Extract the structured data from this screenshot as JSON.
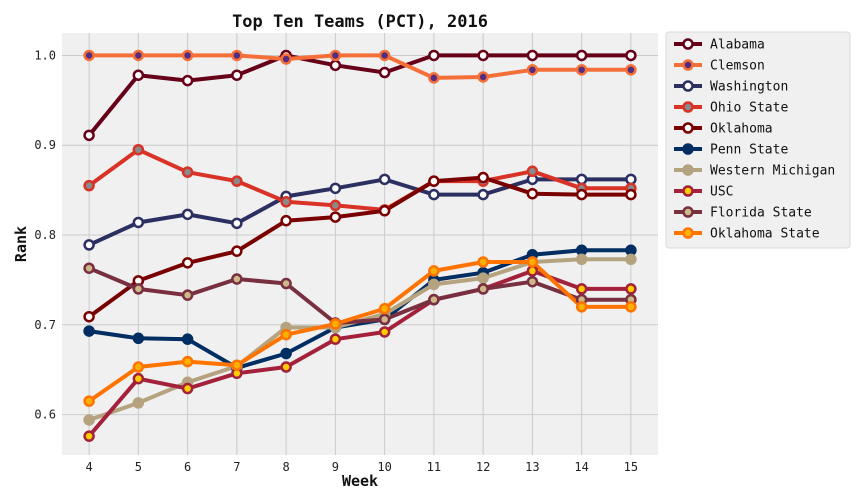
{
  "chart_data": {
    "type": "line",
    "title": "Top Ten Teams (PCT), 2016",
    "xlabel": "Week",
    "ylabel": "Rank",
    "x": [
      4,
      5,
      6,
      7,
      8,
      9,
      10,
      11,
      12,
      13,
      14,
      15
    ],
    "xlim": [
      3.45,
      15.55
    ],
    "ylim": [
      0.555,
      1.025
    ],
    "yticks": [
      0.6,
      0.7,
      0.8,
      0.9,
      1.0
    ],
    "ytick_labels": [
      "0.6",
      "0.7",
      "0.8",
      "0.9",
      "1.0"
    ],
    "grid": true,
    "legend_position": "outside-right",
    "series": [
      {
        "name": "Alabama",
        "color": "#660018",
        "marker_face": "#ffffff",
        "marker_edge": "#660018",
        "values": [
          0.911,
          0.978,
          0.972,
          0.978,
          1.0,
          0.989,
          0.981,
          1.0,
          1.0,
          1.0,
          1.0,
          1.0
        ]
      },
      {
        "name": "Clemson",
        "color": "#f56f39",
        "marker_face": "#522d80",
        "marker_edge": "#f56f39",
        "values": [
          1.0,
          1.0,
          1.0,
          1.0,
          0.996,
          1.0,
          1.0,
          0.975,
          0.976,
          0.984,
          0.984,
          0.984
        ]
      },
      {
        "name": "Washington",
        "color": "#2b2f61",
        "marker_face": "#ffffff",
        "marker_edge": "#2b2f61",
        "values": [
          0.789,
          0.814,
          0.823,
          0.813,
          0.843,
          0.852,
          0.862,
          0.845,
          0.845,
          0.862,
          0.862,
          0.862
        ]
      },
      {
        "name": "Ohio State",
        "color": "#d93226",
        "marker_face": "#8a8a8a",
        "marker_edge": "#d93226",
        "values": [
          0.855,
          0.895,
          0.87,
          0.86,
          0.837,
          0.833,
          0.828,
          0.86,
          0.86,
          0.871,
          0.852,
          0.852
        ]
      },
      {
        "name": "Oklahoma",
        "color": "#7a0000",
        "marker_face": "#ffffff",
        "marker_edge": "#7a0000",
        "values": [
          0.709,
          0.749,
          0.769,
          0.782,
          0.816,
          0.82,
          0.827,
          0.86,
          0.864,
          0.846,
          0.845,
          0.845
        ]
      },
      {
        "name": "Penn State",
        "color": "#002d62",
        "marker_face": "#002d62",
        "marker_edge": "#002d62",
        "values": [
          0.693,
          0.685,
          0.684,
          0.652,
          0.668,
          0.697,
          0.706,
          0.75,
          0.758,
          0.778,
          0.783,
          0.783
        ]
      },
      {
        "name": "Western Michigan",
        "color": "#b5a27f",
        "marker_face": "#b5a27f",
        "marker_edge": "#b5a27f",
        "values": [
          0.594,
          0.613,
          0.636,
          0.654,
          0.697,
          0.697,
          0.712,
          0.745,
          0.752,
          0.77,
          0.773,
          0.773
        ]
      },
      {
        "name": "USC",
        "color": "#a3213b",
        "marker_face": "#ffcc00",
        "marker_edge": "#a3213b",
        "values": [
          0.576,
          0.64,
          0.629,
          0.646,
          0.653,
          0.684,
          0.692,
          0.728,
          0.74,
          0.76,
          0.74,
          0.74
        ]
      },
      {
        "name": "Florida State",
        "color": "#782f40",
        "marker_face": "#ceb888",
        "marker_edge": "#782f40",
        "values": [
          0.763,
          0.74,
          0.733,
          0.751,
          0.746,
          0.702,
          0.706,
          0.728,
          0.74,
          0.748,
          0.728,
          0.728
        ]
      },
      {
        "name": "Oklahoma State",
        "color": "#ff7300",
        "marker_face": "#ffb000",
        "marker_edge": "#ff7300",
        "values": [
          0.615,
          0.653,
          0.659,
          0.655,
          0.689,
          0.701,
          0.718,
          0.76,
          0.77,
          0.77,
          0.72,
          0.72
        ]
      }
    ]
  }
}
